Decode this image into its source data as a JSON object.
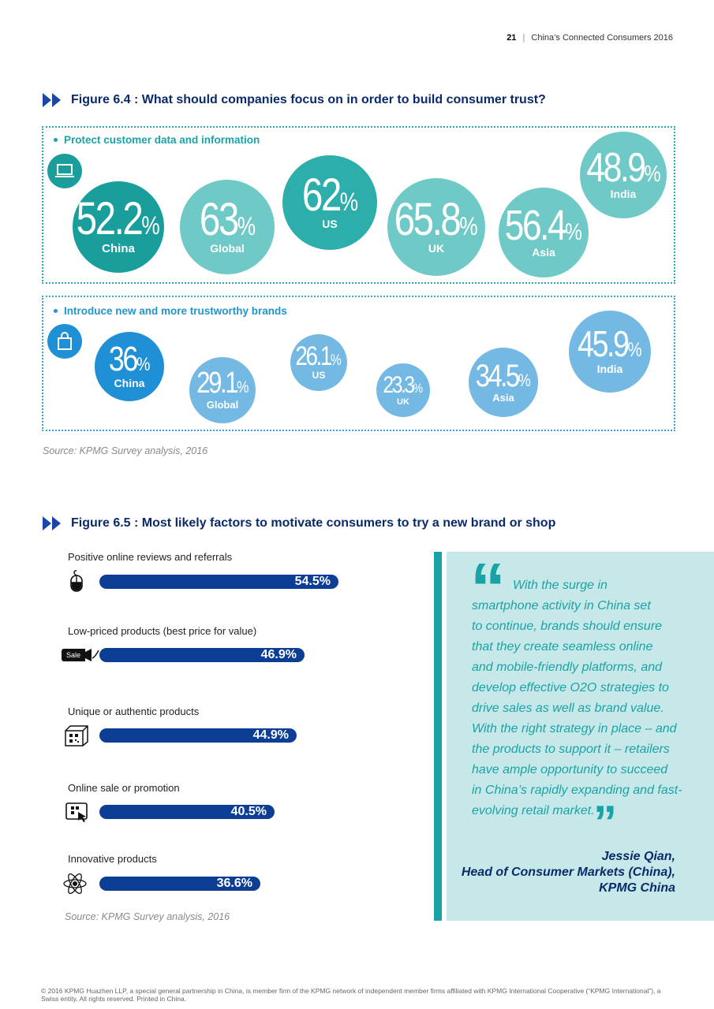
{
  "header": {
    "page_number": "21",
    "separator": "|",
    "publication": "China’s Connected Consumers 2016"
  },
  "figure_64": {
    "title": "Figure 6.4 : What should companies focus on in order to build consumer trust?",
    "panel_a": {
      "heading": "Protect customer data and information",
      "icon": "laptop-icon",
      "items": [
        {
          "label": "China",
          "value": "52.2",
          "unit": "%",
          "color": "#1a9e9c"
        },
        {
          "label": "Global",
          "value": "63",
          "unit": "%",
          "color": "#6fc9c6"
        },
        {
          "label": "US",
          "value": "62",
          "unit": "%",
          "color": "#2eaeab"
        },
        {
          "label": "UK",
          "value": "65.8",
          "unit": "%",
          "color": "#6fc9c6"
        },
        {
          "label": "Asia",
          "value": "56.4",
          "unit": "%",
          "color": "#6fc9c6"
        },
        {
          "label": "India",
          "value": "48.9",
          "unit": "%",
          "color": "#6fc9c6"
        }
      ]
    },
    "panel_b": {
      "heading": "Introduce new and more trustworthy brands",
      "icon": "shopping-bag-icon",
      "items": [
        {
          "label": "China",
          "value": "36",
          "unit": "%",
          "color": "#1f8fd6"
        },
        {
          "label": "Global",
          "value": "29.1",
          "unit": "%",
          "color": "#74b9e3"
        },
        {
          "label": "US",
          "value": "26.1",
          "unit": "%",
          "color": "#74b9e3"
        },
        {
          "label": "UK",
          "value": "23.3",
          "unit": "%",
          "color": "#74b9e3"
        },
        {
          "label": "Asia",
          "value": "34.5",
          "unit": "%",
          "color": "#74b9e3"
        },
        {
          "label": "India",
          "value": "45.9",
          "unit": "%",
          "color": "#74b9e3"
        }
      ]
    },
    "source": "Source: KPMG Survey analysis, 2016"
  },
  "figure_65": {
    "title": "Figure 6.5 : Most likely factors to motivate consumers to try a new brand or shop",
    "factors": [
      {
        "label": "Positive online reviews and referrals",
        "value": "54.5%",
        "icon": "mouse-icon"
      },
      {
        "label": "Low-priced products (best price for value)",
        "value": "46.9%",
        "icon": "sale-tag-icon",
        "icon_text": "Sale"
      },
      {
        "label": "Unique or authentic products",
        "value": "44.9%",
        "icon": "qr-box-icon"
      },
      {
        "label": "Online sale or promotion",
        "value": "40.5%",
        "icon": "qr-scan-icon"
      },
      {
        "label": "Innovative products",
        "value": "36.6%",
        "icon": "atom-icon"
      }
    ],
    "source": "Source: KPMG Survey analysis, 2016"
  },
  "quote": {
    "text": "With the surge in smartphone activity in China set to continue, brands should ensure that they create seamless online and mobile-friendly platforms, and develop effective O2O strategies to drive sales as well as brand value. With the right strategy in place – and the products to support it – retailers have ample opportunity to succeed in China’s rapidly expanding and fast-evolving retail market.",
    "lines": [
      "With the surge in",
      "smartphone activity in China set",
      "to continue, brands should ensure",
      "that they create seamless online",
      "and mobile-friendly platforms, and",
      "develop effective O2O strategies to",
      "drive sales as well as brand value.",
      "With the right strategy in place – and",
      "the products to support it – retailers",
      "have ample opportunity to succeed",
      "in China’s rapidly expanding and fast-",
      "evolving retail market."
    ],
    "author": "Jessie Qian,",
    "role": "Head of Consumer Markets (China),",
    "org": "KPMG China"
  },
  "footer": {
    "text": "© 2016 KPMG Huazhen LLP, a special general partnership in China, is member firm of the KPMG network of independent member firms affiliated with KPMG International Cooperative (“KPMG International”), a Swiss entity. All rights reserved. Printed in China."
  }
}
